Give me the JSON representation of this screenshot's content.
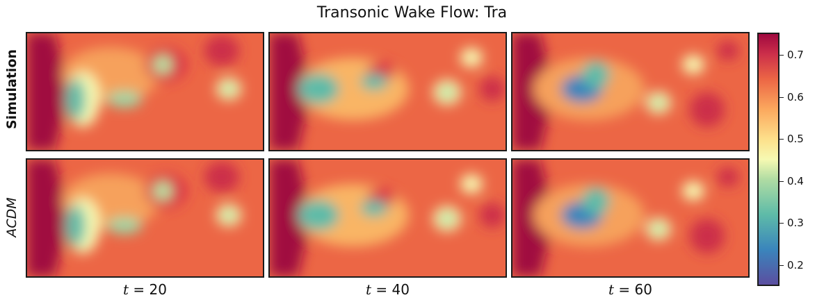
{
  "title": "Transonic Wake Flow: Tra",
  "rows": [
    {
      "label": "Simulation",
      "style": "bold"
    },
    {
      "label": "ACDM",
      "style": "italic"
    }
  ],
  "columns": [
    {
      "label_var": "t",
      "label_eq": " = 20"
    },
    {
      "label_var": "t",
      "label_eq": " = 40"
    },
    {
      "label_var": "t",
      "label_eq": " = 60"
    }
  ],
  "colorbar": {
    "ticks": [
      "0.2",
      "0.3",
      "0.4",
      "0.5",
      "0.6",
      "0.7"
    ],
    "colormap": "Spectral_r"
  },
  "colors": {
    "high": "#a0083f",
    "mid": "#f6f9b2",
    "low": "#3a85bc",
    "orange": "#f2874f"
  }
}
